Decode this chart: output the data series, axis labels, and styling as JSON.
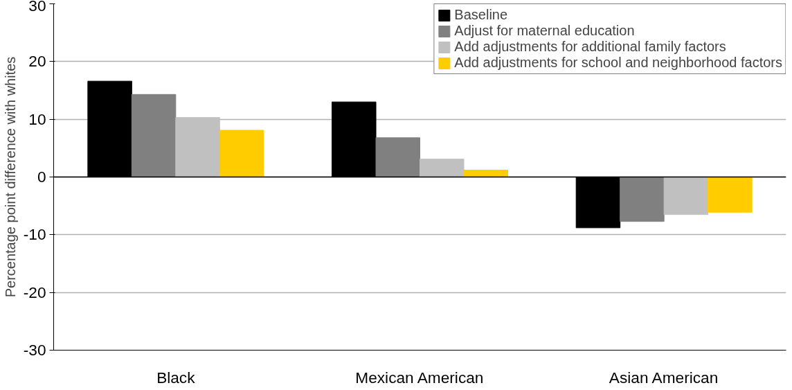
{
  "chart_data": {
    "type": "bar",
    "ylabel": "Percentage point difference with whites",
    "categories": [
      "Black",
      "Mexican American",
      "Asian American"
    ],
    "series": [
      {
        "name": "Baseline",
        "color": "#000000",
        "values": [
          16.6,
          13.0,
          -8.8
        ]
      },
      {
        "name": "Adjust for maternal education",
        "color": "#808080",
        "values": [
          14.3,
          6.8,
          -7.7
        ]
      },
      {
        "name": "Add adjustments for additional family factors",
        "color": "#c0c0c0",
        "values": [
          10.3,
          3.1,
          -6.5
        ]
      },
      {
        "name": "Add adjustments for school and neighborhood factors",
        "color": "#ffcc00",
        "values": [
          8.1,
          1.2,
          -6.1
        ]
      }
    ],
    "ylim": [
      -30,
      30
    ],
    "yticks": [
      -30,
      -20,
      -10,
      0,
      10,
      20,
      30
    ],
    "grid": "y",
    "legend": "top right"
  }
}
